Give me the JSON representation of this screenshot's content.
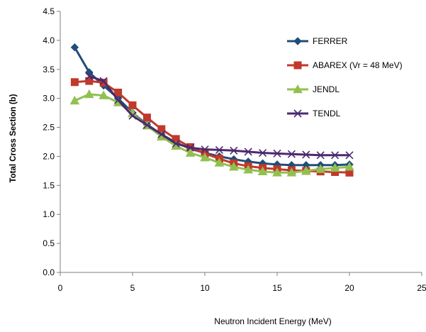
{
  "chart_data": {
    "type": "line",
    "xlabel": "Neutron Incident  Energy (MeV)",
    "ylabel": "Total Cross Section (b)",
    "xlim": [
      0,
      25
    ],
    "ylim": [
      0,
      4.5
    ],
    "x_ticks": [
      "0",
      "5",
      "10",
      "15",
      "20",
      "25"
    ],
    "y_ticks": [
      "0.0",
      "0.5",
      "1.0",
      "1.5",
      "2.0",
      "2.5",
      "3.0",
      "3.5",
      "4.0",
      "4.5"
    ],
    "grid": false,
    "legend_position": "right",
    "series": [
      {
        "name": "FERRER",
        "color": "#1f4e79",
        "marker": "diamond",
        "x": [
          1,
          2,
          3,
          4,
          5,
          6,
          7,
          8,
          9,
          10,
          11,
          12,
          13,
          14,
          15,
          16,
          17,
          18,
          19,
          20
        ],
        "y": [
          3.88,
          3.45,
          3.22,
          3.0,
          2.75,
          2.55,
          2.38,
          2.24,
          2.13,
          2.06,
          2.0,
          1.95,
          1.91,
          1.88,
          1.86,
          1.85,
          1.85,
          1.85,
          1.85,
          1.86
        ]
      },
      {
        "name": "ABAREX (Vr = 48 MeV)",
        "color": "#c0392b",
        "marker": "square",
        "x": [
          1,
          2,
          3,
          4,
          5,
          6,
          7,
          8,
          9,
          10,
          11,
          12,
          13,
          14,
          15,
          16,
          17,
          18,
          19,
          20
        ],
        "y": [
          3.28,
          3.3,
          3.27,
          3.1,
          2.88,
          2.67,
          2.47,
          2.3,
          2.16,
          2.05,
          1.96,
          1.88,
          1.83,
          1.8,
          1.78,
          1.76,
          1.75,
          1.74,
          1.73,
          1.72
        ]
      },
      {
        "name": "JENDL",
        "color": "#92c050",
        "marker": "triangle",
        "x": [
          1,
          2,
          3,
          4,
          5,
          6,
          7,
          8,
          9,
          10,
          11,
          12,
          13,
          14,
          15,
          16,
          17,
          18,
          19,
          20
        ],
        "y": [
          2.96,
          3.07,
          3.05,
          2.93,
          2.74,
          2.53,
          2.34,
          2.18,
          2.06,
          1.98,
          1.89,
          1.82,
          1.77,
          1.74,
          1.72,
          1.72,
          1.75,
          1.78,
          1.8,
          1.82
        ]
      },
      {
        "name": "TENDL",
        "color": "#4b2a6e",
        "marker": "x",
        "x": [
          1,
          2,
          3,
          4,
          5,
          6,
          7,
          8,
          9,
          10,
          11,
          12,
          13,
          14,
          15,
          16,
          17,
          18,
          19,
          20
        ],
        "y": [
          null,
          3.38,
          3.3,
          2.97,
          2.7,
          2.54,
          2.38,
          2.22,
          2.15,
          2.12,
          2.11,
          2.1,
          2.08,
          2.06,
          2.05,
          2.04,
          2.03,
          2.02,
          2.02,
          2.02
        ]
      }
    ]
  }
}
